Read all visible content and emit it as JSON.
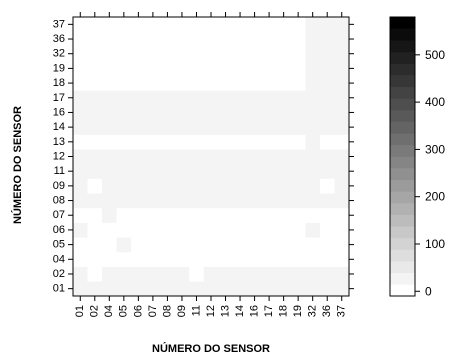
{
  "chart_data": {
    "type": "heatmap",
    "title": "",
    "xlabel": "NÚMERO DO SENSOR",
    "ylabel": "NÚMERO DO SENSOR",
    "x_categories": [
      "01",
      "02",
      "04",
      "05",
      "06",
      "07",
      "08",
      "09",
      "11",
      "12",
      "13",
      "14",
      "16",
      "17",
      "18",
      "19",
      "32",
      "36",
      "37"
    ],
    "y_categories": [
      "01",
      "02",
      "04",
      "05",
      "06",
      "07",
      "08",
      "09",
      "11",
      "12",
      "13",
      "14",
      "16",
      "17",
      "18",
      "19",
      "32",
      "36",
      "37"
    ],
    "color_scale": {
      "min": -10,
      "max": 580,
      "ticks": [
        0,
        100,
        200,
        300,
        400,
        500
      ],
      "tick_labels": [
        "0",
        "100",
        "200",
        "300",
        "400",
        "500"
      ],
      "steps": 24
    },
    "grid": false,
    "legend": "right",
    "values": [
      [
        20,
        20,
        20,
        20,
        20,
        20,
        20,
        20,
        20,
        20,
        20,
        20,
        20,
        20,
        20,
        20,
        20,
        20,
        20
      ],
      [
        20,
        0,
        20,
        20,
        20,
        20,
        20,
        20,
        0,
        20,
        20,
        20,
        20,
        20,
        20,
        20,
        20,
        20,
        20
      ],
      [
        0,
        0,
        0,
        0,
        0,
        0,
        0,
        0,
        0,
        0,
        0,
        0,
        0,
        0,
        0,
        0,
        0,
        0,
        0
      ],
      [
        0,
        0,
        0,
        20,
        0,
        0,
        0,
        0,
        0,
        0,
        0,
        0,
        0,
        0,
        0,
        0,
        0,
        0,
        0
      ],
      [
        20,
        0,
        0,
        0,
        0,
        0,
        0,
        0,
        0,
        0,
        0,
        0,
        0,
        0,
        0,
        0,
        20,
        0,
        0
      ],
      [
        0,
        0,
        20,
        0,
        0,
        0,
        0,
        0,
        0,
        0,
        0,
        0,
        0,
        0,
        0,
        0,
        0,
        0,
        0
      ],
      [
        20,
        20,
        20,
        20,
        20,
        20,
        20,
        20,
        20,
        20,
        20,
        20,
        20,
        20,
        20,
        20,
        20,
        20,
        20
      ],
      [
        20,
        0,
        20,
        20,
        20,
        20,
        20,
        20,
        20,
        20,
        20,
        20,
        20,
        20,
        20,
        20,
        20,
        0,
        20
      ],
      [
        20,
        20,
        20,
        20,
        20,
        20,
        20,
        20,
        20,
        20,
        20,
        20,
        20,
        20,
        20,
        20,
        20,
        20,
        20
      ],
      [
        20,
        20,
        20,
        20,
        20,
        20,
        20,
        20,
        20,
        20,
        20,
        20,
        20,
        20,
        20,
        20,
        20,
        20,
        20
      ],
      [
        0,
        0,
        0,
        0,
        0,
        0,
        0,
        0,
        0,
        0,
        0,
        0,
        0,
        0,
        0,
        0,
        20,
        0,
        0
      ],
      [
        20,
        20,
        20,
        20,
        20,
        20,
        20,
        20,
        20,
        20,
        20,
        20,
        20,
        20,
        20,
        20,
        20,
        20,
        20
      ],
      [
        20,
        20,
        20,
        20,
        20,
        20,
        20,
        20,
        20,
        20,
        20,
        20,
        20,
        20,
        20,
        20,
        20,
        20,
        20
      ],
      [
        20,
        20,
        20,
        20,
        20,
        20,
        20,
        20,
        20,
        20,
        20,
        20,
        20,
        20,
        20,
        20,
        20,
        20,
        20
      ],
      [
        0,
        0,
        0,
        0,
        0,
        0,
        0,
        0,
        0,
        0,
        0,
        0,
        0,
        0,
        0,
        0,
        20,
        20,
        20
      ],
      [
        0,
        0,
        0,
        0,
        0,
        0,
        0,
        0,
        0,
        0,
        0,
        0,
        0,
        0,
        0,
        0,
        20,
        20,
        20
      ],
      [
        0,
        0,
        0,
        0,
        0,
        0,
        0,
        0,
        0,
        0,
        0,
        0,
        0,
        0,
        0,
        0,
        20,
        20,
        20
      ],
      [
        0,
        0,
        0,
        0,
        0,
        0,
        0,
        0,
        0,
        0,
        0,
        0,
        0,
        0,
        0,
        0,
        20,
        20,
        20
      ],
      [
        0,
        0,
        0,
        0,
        0,
        0,
        0,
        0,
        0,
        0,
        0,
        0,
        0,
        0,
        0,
        0,
        20,
        20,
        20
      ]
    ]
  }
}
